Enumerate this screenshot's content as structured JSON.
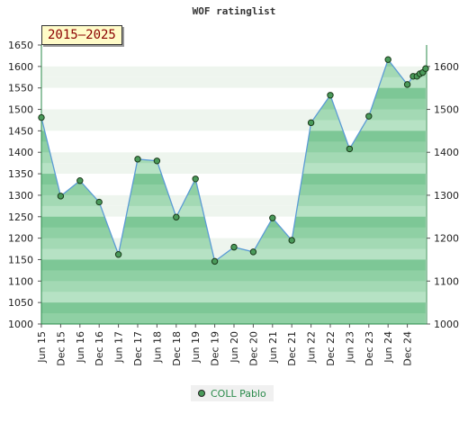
{
  "title": "WOF ratinglist",
  "badge": "2015—2025",
  "chart_data": {
    "type": "area",
    "title": "WOF ratinglist",
    "categories": [
      "Jun 15",
      "Dec 15",
      "Jun 16",
      "Dec 16",
      "Jun 17",
      "Dec 17",
      "Jun 18",
      "Dec 18",
      "Jun 19",
      "Dec 19",
      "Jun 20",
      "Dec 20",
      "Jun 21",
      "Dec 21",
      "Jun 22",
      "Dec 22",
      "Jun 23",
      "Dec 23",
      "Jun 24",
      "Dec 24"
    ],
    "series": [
      {
        "name": "COLL Pablo",
        "x": [
          0,
          1,
          2,
          3,
          4,
          5,
          6,
          7,
          8,
          9,
          10,
          11,
          12,
          13,
          14,
          15,
          16,
          17,
          18,
          19,
          19.3,
          19.5,
          19.65,
          19.8,
          19.95
        ],
        "values": [
          1481,
          1298,
          1334,
          1284,
          1162,
          1384,
          1380,
          1249,
          1338,
          1146,
          1179,
          1168,
          1247,
          1195,
          1469,
          1533,
          1408,
          1484,
          1616,
          1558,
          1577,
          1577,
          1583,
          1586,
          1595
        ]
      }
    ],
    "ylim_left": [
      1000,
      1650
    ],
    "yticks_left": [
      1000,
      1050,
      1100,
      1150,
      1200,
      1250,
      1300,
      1350,
      1400,
      1450,
      1500,
      1550,
      1600,
      1650
    ],
    "ylim_right": [
      1000,
      1650
    ],
    "yticks_right": [
      1000,
      1100,
      1200,
      1300,
      1400,
      1500,
      1600
    ],
    "colors": {
      "line": "#5b9bd5",
      "fill": "#6cc08a",
      "marker": "#4a9a5a"
    },
    "legend_position": "bottom-center"
  }
}
